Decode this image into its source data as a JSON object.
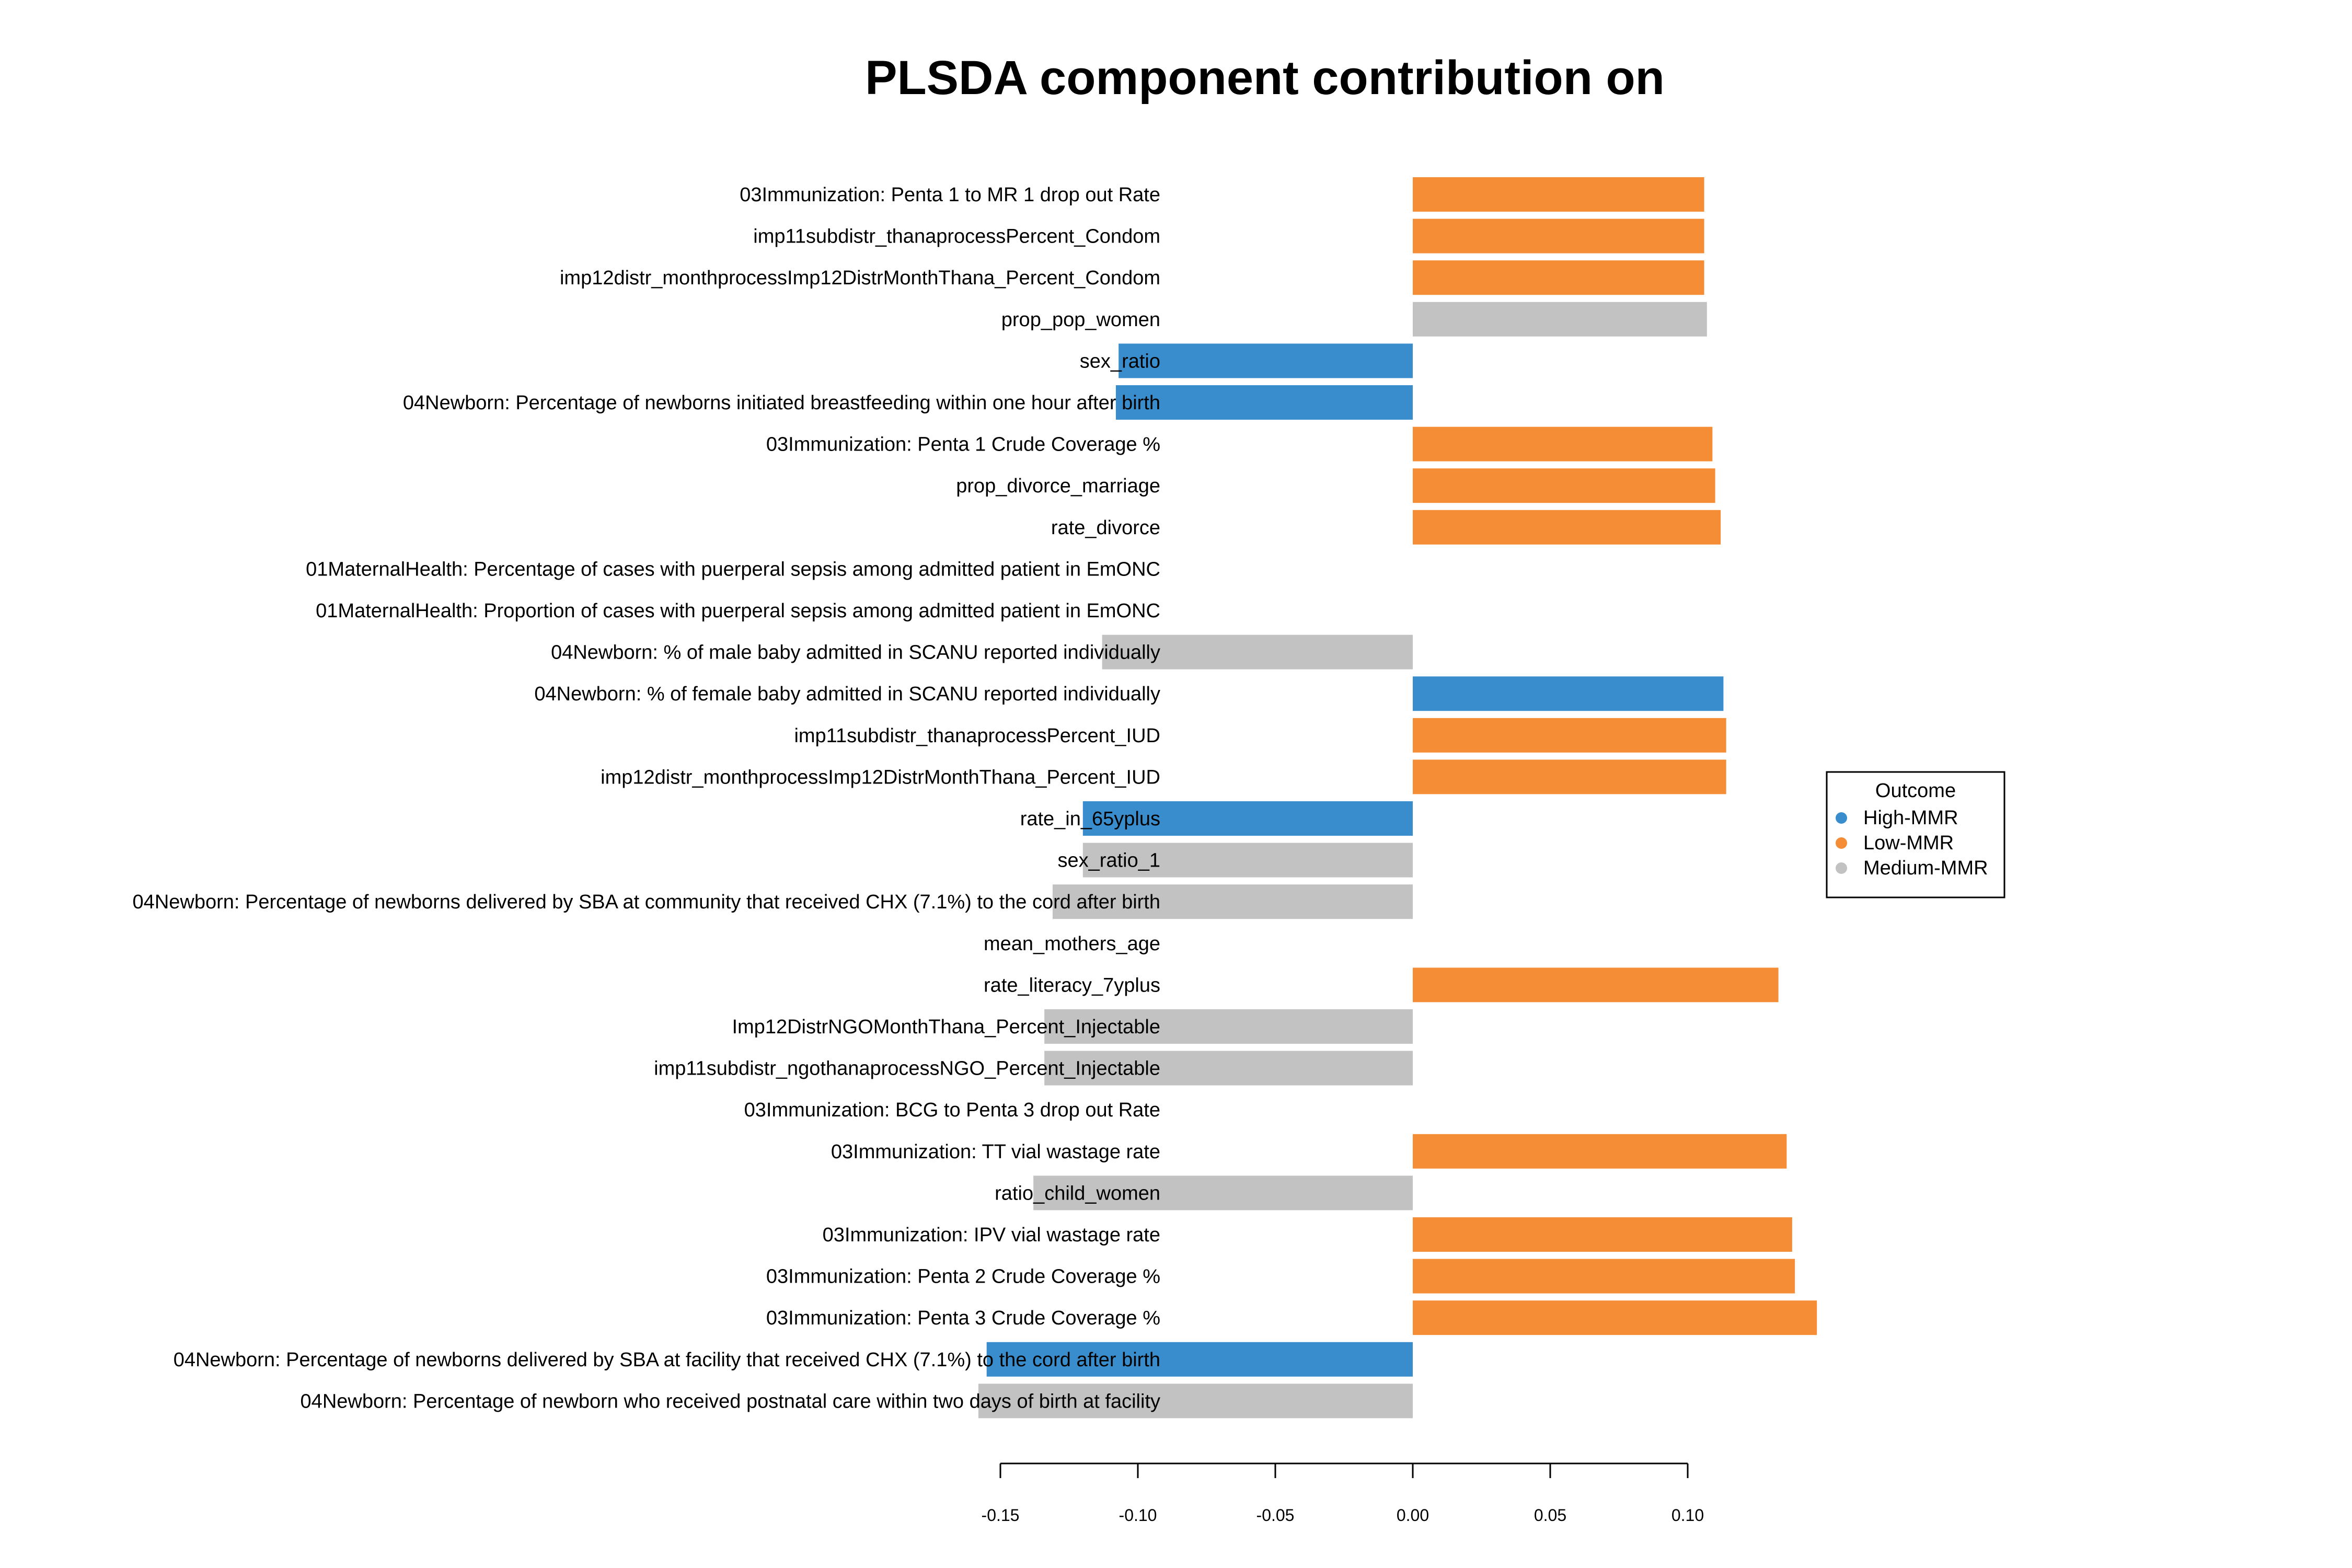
{
  "chart_data": {
    "type": "bar",
    "orientation": "horizontal",
    "title": "PLSDA component contribution on",
    "xlabel": "",
    "ylabel": "",
    "xlim": [
      -0.155,
      0.15
    ],
    "xticks": [
      "-0.15",
      "-0.10",
      "-0.05",
      "0.00",
      "0.05",
      "0.10"
    ],
    "xtick_values": [
      -0.15,
      -0.1,
      -0.05,
      0.0,
      0.05,
      0.1
    ],
    "grid": false,
    "legend": {
      "title": "Outcome",
      "placement": "right",
      "items": [
        {
          "label": "High-MMR",
          "color": "#3a8dcc"
        },
        {
          "label": "Low-MMR",
          "color": "#f58d36"
        },
        {
          "label": "Medium-MMR",
          "color": "#c2c2c2"
        }
      ]
    },
    "colors": {
      "High-MMR": "#3a8dcc",
      "Low-MMR": "#f58d36",
      "Medium-MMR": "#c2c2c2"
    },
    "bars": [
      {
        "label": "03Immunization: Penta 1 to MR 1 drop out Rate",
        "value": 0.106,
        "group": "Low-MMR"
      },
      {
        "label": "imp11subdistr_thanaprocessPercent_Condom",
        "value": 0.106,
        "group": "Low-MMR"
      },
      {
        "label": "imp12distr_monthprocessImp12DistrMonthThana_Percent_Condom",
        "value": 0.106,
        "group": "Low-MMR"
      },
      {
        "label": "prop_pop_women",
        "value": 0.107,
        "group": "Medium-MMR"
      },
      {
        "label": "sex_ratio",
        "value": -0.107,
        "group": "High-MMR"
      },
      {
        "label": "04Newborn: Percentage of newborns initiated breastfeeding within one hour after birth",
        "value": -0.108,
        "group": "High-MMR"
      },
      {
        "label": "03Immunization: Penta 1 Crude Coverage %",
        "value": 0.109,
        "group": "Low-MMR"
      },
      {
        "label": "prop_divorce_marriage",
        "value": 0.11,
        "group": "Low-MMR"
      },
      {
        "label": "rate_divorce",
        "value": 0.112,
        "group": "Low-MMR"
      },
      {
        "label": "01MaternalHealth: Percentage of cases with puerperal sepsis among admitted patient in EmONC",
        "value": 0,
        "group": "Low-MMR"
      },
      {
        "label": "01MaternalHealth: Proportion of cases with puerperal sepsis among admitted patient in EmONC",
        "value": 0,
        "group": "Low-MMR"
      },
      {
        "label": "04Newborn: % of male baby admitted in SCANU reported individually",
        "value": -0.113,
        "group": "Medium-MMR"
      },
      {
        "label": "04Newborn: % of female baby admitted in SCANU reported individually",
        "value": 0.113,
        "group": "High-MMR"
      },
      {
        "label": "imp11subdistr_thanaprocessPercent_IUD",
        "value": 0.114,
        "group": "Low-MMR"
      },
      {
        "label": "imp12distr_monthprocessImp12DistrMonthThana_Percent_IUD",
        "value": 0.114,
        "group": "Low-MMR"
      },
      {
        "label": "rate_in_65yplus",
        "value": -0.12,
        "group": "High-MMR"
      },
      {
        "label": "sex_ratio_1",
        "value": -0.12,
        "group": "Medium-MMR"
      },
      {
        "label": "04Newborn: Percentage of newborns delivered by SBA at community that received CHX (7.1%) to the cord after birth",
        "value": -0.131,
        "group": "Medium-MMR"
      },
      {
        "label": "mean_mothers_age",
        "value": 0,
        "group": "Low-MMR"
      },
      {
        "label": "rate_literacy_7yplus",
        "value": 0.133,
        "group": "Low-MMR"
      },
      {
        "label": "Imp12DistrNGOMonthThana_Percent_Injectable",
        "value": -0.134,
        "group": "Medium-MMR"
      },
      {
        "label": "imp11subdistr_ngothanaprocessNGO_Percent_Injectable",
        "value": -0.134,
        "group": "Medium-MMR"
      },
      {
        "label": "03Immunization: BCG to Penta 3 drop out Rate",
        "value": 0,
        "group": "Low-MMR"
      },
      {
        "label": "03Immunization: TT vial wastage rate",
        "value": 0.136,
        "group": "Low-MMR"
      },
      {
        "label": "ratio_child_women",
        "value": -0.138,
        "group": "Medium-MMR"
      },
      {
        "label": "03Immunization: IPV vial wastage rate",
        "value": 0.138,
        "group": "Low-MMR"
      },
      {
        "label": "03Immunization: Penta 2 Crude Coverage %",
        "value": 0.139,
        "group": "Low-MMR"
      },
      {
        "label": "03Immunization: Penta 3 Crude Coverage %",
        "value": 0.147,
        "group": "Low-MMR"
      },
      {
        "label": "04Newborn: Percentage of newborns delivered by SBA at facility that received CHX (7.1%) to the cord after birth",
        "value": -0.155,
        "group": "High-MMR"
      },
      {
        "label": "04Newborn: Percentage of newborn who received postnatal care within two days of birth at facility",
        "value": -0.158,
        "group": "Medium-MMR"
      }
    ]
  }
}
